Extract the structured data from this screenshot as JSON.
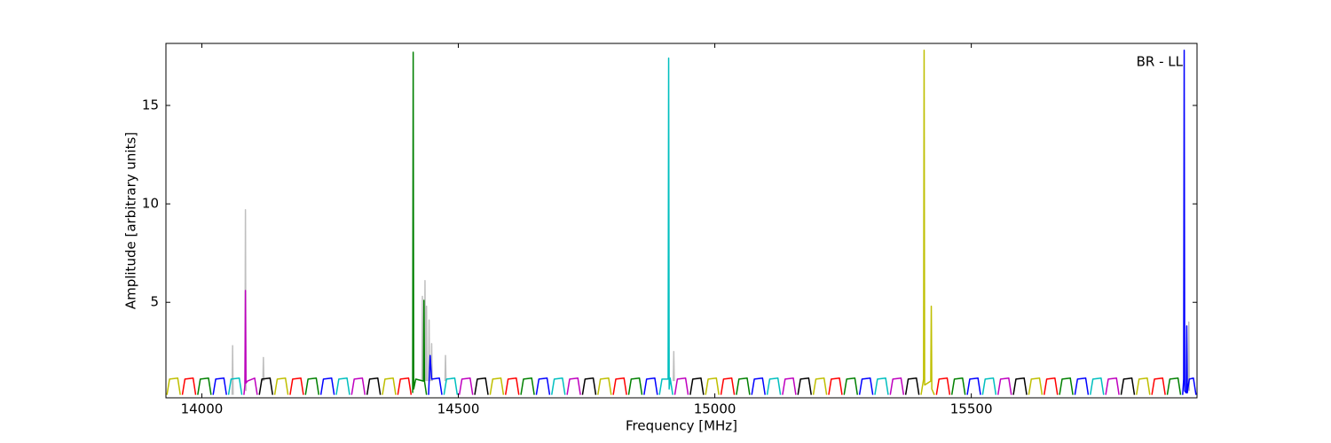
{
  "chart_data": {
    "type": "line",
    "xlabel": "Frequency [MHz]",
    "ylabel": "Amplitude [arbitrary units]",
    "annotation": "BR - LL",
    "xlim": [
      13930,
      15940
    ],
    "xticks": [
      14000,
      14500,
      15000,
      15500
    ],
    "ylim": [
      0.15,
      18.15
    ],
    "yticks": [
      5,
      10,
      15
    ],
    "series": [
      {
        "color": "#bfbfbf",
        "x": [
          14059,
          14060,
          14061,
          null,
          14084,
          14085,
          14086,
          null,
          14119,
          14120,
          14121,
          null,
          14429,
          14430,
          14431,
          null,
          14434,
          14435,
          14436,
          null,
          14437,
          14438,
          14439,
          null,
          14442,
          14443,
          14444,
          null,
          14447,
          14448,
          14449,
          null,
          14474,
          14475,
          14476,
          null,
          14919,
          14920,
          14921,
          null,
          15923,
          15924,
          15925
        ],
        "values": [
          0.3,
          2.8,
          0.3,
          null,
          0.5,
          9.7,
          0.5,
          null,
          1.0,
          2.2,
          1.0,
          null,
          1.0,
          5.3,
          1.0,
          null,
          1.0,
          6.1,
          1.0,
          null,
          1.0,
          4.8,
          1.0,
          null,
          1.0,
          4.1,
          1.0,
          null,
          1.0,
          2.9,
          1.0,
          null,
          1.0,
          2.3,
          1.0,
          null,
          1.0,
          2.5,
          1.0,
          null,
          0.5,
          4.0,
          0.5
        ]
      },
      {
        "color": "#bfbf00",
        "x": [
          13932,
          13937,
          13953,
          13958,
          null,
          14142,
          14147,
          14163,
          14168,
          null,
          14352,
          14357,
          14373,
          14378,
          null,
          14562,
          14567,
          14583,
          14588,
          null,
          14772,
          14777,
          14793,
          14798,
          null,
          14982,
          14987,
          15003,
          15008,
          null,
          15192,
          15197,
          15213,
          15218,
          null,
          15402,
          15407,
          15408,
          15409,
          15421,
          15422,
          15423,
          15428,
          null,
          15612,
          15617,
          15633,
          15638,
          null,
          15822,
          15827,
          15843,
          15848
        ],
        "values": [
          0.3,
          1.1,
          1.15,
          0.3,
          null,
          0.3,
          1.1,
          1.15,
          0.3,
          null,
          0.3,
          1.1,
          1.15,
          0.3,
          null,
          0.3,
          1.1,
          1.15,
          0.3,
          null,
          0.3,
          1.1,
          1.15,
          0.3,
          null,
          0.3,
          1.1,
          1.15,
          0.3,
          null,
          0.3,
          1.1,
          1.15,
          0.3,
          null,
          0.3,
          1.1,
          17.8,
          0.8,
          1.0,
          4.8,
          0.6,
          0.3,
          null,
          0.3,
          1.1,
          1.15,
          0.3,
          null,
          0.3,
          1.1,
          1.15,
          0.3
        ]
      },
      {
        "color": "#ff0000",
        "x": [
          13962,
          13967,
          13983,
          13988,
          null,
          14172,
          14177,
          14193,
          14198,
          null,
          14382,
          14387,
          14403,
          14408,
          null,
          14592,
          14597,
          14613,
          14618,
          null,
          14802,
          14807,
          14823,
          14828,
          null,
          15012,
          15017,
          15033,
          15038,
          null,
          15222,
          15227,
          15243,
          15248,
          null,
          15432,
          15437,
          15453,
          15458,
          null,
          15642,
          15647,
          15663,
          15668,
          null,
          15852,
          15857,
          15873,
          15878
        ],
        "values": [
          0.3,
          1.1,
          1.15,
          0.3,
          null,
          0.3,
          1.1,
          1.15,
          0.3,
          null,
          0.3,
          1.1,
          1.15,
          0.3,
          null,
          0.3,
          1.1,
          1.15,
          0.3,
          null,
          0.3,
          1.1,
          1.15,
          0.3,
          null,
          0.3,
          1.1,
          1.15,
          0.3,
          null,
          0.3,
          1.1,
          1.15,
          0.3,
          null,
          0.3,
          1.1,
          1.15,
          0.3,
          null,
          0.3,
          1.1,
          1.15,
          0.3,
          null,
          0.3,
          1.1,
          1.15,
          0.3
        ]
      },
      {
        "color": "#008000",
        "x": [
          13992,
          13997,
          14013,
          14018,
          null,
          14202,
          14207,
          14223,
          14228,
          null,
          14411,
          14412,
          14413,
          14417,
          14432,
          14433,
          14434,
          14438,
          null,
          14622,
          14627,
          14643,
          14648,
          null,
          14832,
          14837,
          14853,
          14858,
          null,
          15042,
          15047,
          15063,
          15068,
          null,
          15252,
          15257,
          15273,
          15278,
          null,
          15462,
          15467,
          15483,
          15488,
          null,
          15672,
          15677,
          15693,
          15698,
          null,
          15882,
          15887,
          15903,
          15908
        ],
        "values": [
          0.3,
          1.1,
          1.15,
          0.3,
          null,
          0.3,
          1.1,
          1.15,
          0.3,
          null,
          0.4,
          17.7,
          0.6,
          1.1,
          1.0,
          5.1,
          1.0,
          0.3,
          null,
          0.3,
          1.1,
          1.15,
          0.3,
          null,
          0.3,
          1.1,
          1.15,
          0.3,
          null,
          0.3,
          1.1,
          1.15,
          0.3,
          null,
          0.3,
          1.1,
          1.15,
          0.3,
          null,
          0.3,
          1.1,
          1.15,
          0.3,
          null,
          0.3,
          1.1,
          1.15,
          0.3,
          null,
          0.3,
          1.1,
          1.15,
          0.3
        ]
      },
      {
        "color": "#0000ff",
        "x": [
          14022,
          14027,
          14043,
          14048,
          null,
          14232,
          14237,
          14253,
          14258,
          null,
          14442,
          14445,
          14448,
          14463,
          14468,
          null,
          14652,
          14657,
          14673,
          14678,
          null,
          14862,
          14867,
          14883,
          14888,
          null,
          15072,
          15077,
          15093,
          15098,
          null,
          15282,
          15287,
          15303,
          15308,
          null,
          15492,
          15497,
          15513,
          15518,
          null,
          15702,
          15707,
          15723,
          15728,
          null,
          15912,
          15914,
          15915,
          15916,
          15919,
          15920,
          15921,
          15925,
          15933,
          15938
        ],
        "values": [
          0.3,
          1.1,
          1.15,
          0.3,
          null,
          0.3,
          1.1,
          1.15,
          0.3,
          null,
          0.3,
          2.3,
          1.1,
          1.15,
          0.3,
          null,
          0.3,
          1.1,
          1.15,
          0.3,
          null,
          0.3,
          1.1,
          1.15,
          0.3,
          null,
          0.3,
          1.1,
          1.15,
          0.3,
          null,
          0.3,
          1.1,
          1.15,
          0.3,
          null,
          0.3,
          1.1,
          1.15,
          0.3,
          null,
          0.3,
          1.1,
          1.15,
          0.3,
          null,
          0.3,
          1.1,
          17.8,
          0.5,
          0.4,
          3.8,
          0.4,
          1.1,
          1.15,
          0.3
        ]
      },
      {
        "color": "#00bfbf",
        "x": [
          14052,
          14057,
          14073,
          14078,
          null,
          14262,
          14267,
          14283,
          14288,
          null,
          14472,
          14477,
          14493,
          14498,
          null,
          14682,
          14687,
          14703,
          14708,
          null,
          14892,
          14897,
          14909,
          14910,
          14911,
          14913,
          14918,
          null,
          15102,
          15107,
          15123,
          15128,
          null,
          15312,
          15317,
          15333,
          15338,
          null,
          15522,
          15527,
          15543,
          15548,
          null,
          15732,
          15737,
          15753,
          15758
        ],
        "values": [
          0.3,
          1.1,
          1.15,
          0.3,
          null,
          0.3,
          1.1,
          1.15,
          0.3,
          null,
          0.3,
          1.1,
          1.15,
          0.3,
          null,
          0.3,
          1.1,
          1.15,
          0.3,
          null,
          0.3,
          1.1,
          1.1,
          17.4,
          0.6,
          1.15,
          0.3,
          null,
          0.3,
          1.1,
          1.15,
          0.3,
          null,
          0.3,
          1.1,
          1.15,
          0.3,
          null,
          0.3,
          1.1,
          1.15,
          0.3,
          null,
          0.3,
          1.1,
          1.15,
          0.3
        ]
      },
      {
        "color": "#bf00bf",
        "x": [
          14082,
          14084,
          14085,
          14086,
          14089,
          14103,
          14108,
          null,
          14292,
          14297,
          14313,
          14318,
          null,
          14502,
          14507,
          14523,
          14528,
          null,
          14712,
          14717,
          14733,
          14738,
          null,
          14922,
          14927,
          14943,
          14948,
          null,
          15132,
          15137,
          15153,
          15158,
          null,
          15342,
          15347,
          15363,
          15368,
          null,
          15552,
          15557,
          15573,
          15578,
          null,
          15762,
          15767,
          15783,
          15788
        ],
        "values": [
          0.3,
          0.8,
          5.6,
          0.9,
          1.0,
          1.15,
          0.3,
          null,
          0.3,
          1.1,
          1.15,
          0.3,
          null,
          0.3,
          1.1,
          1.15,
          0.3,
          null,
          0.3,
          1.1,
          1.15,
          0.3,
          null,
          0.3,
          1.1,
          1.15,
          0.3,
          null,
          0.3,
          1.1,
          1.15,
          0.3,
          null,
          0.3,
          1.1,
          1.15,
          0.3,
          null,
          0.3,
          1.1,
          1.15,
          0.3,
          null,
          0.3,
          1.1,
          1.15,
          0.3
        ]
      },
      {
        "color": "#000000",
        "x": [
          14112,
          14117,
          14133,
          14138,
          null,
          14322,
          14327,
          14343,
          14348,
          null,
          14532,
          14537,
          14553,
          14558,
          null,
          14742,
          14747,
          14763,
          14768,
          null,
          14952,
          14957,
          14973,
          14978,
          null,
          15162,
          15167,
          15183,
          15188,
          null,
          15372,
          15377,
          15393,
          15398,
          null,
          15582,
          15587,
          15603,
          15608,
          null,
          15792,
          15797,
          15813,
          15818
        ],
        "values": [
          0.3,
          1.1,
          1.15,
          0.3,
          null,
          0.3,
          1.1,
          1.15,
          0.3,
          null,
          0.3,
          1.1,
          1.15,
          0.3,
          null,
          0.3,
          1.1,
          1.15,
          0.3,
          null,
          0.3,
          1.1,
          1.15,
          0.3,
          null,
          0.3,
          1.1,
          1.15,
          0.3,
          null,
          0.3,
          1.1,
          1.15,
          0.3,
          null,
          0.3,
          1.1,
          1.15,
          0.3,
          null,
          0.3,
          1.1,
          1.15,
          0.3
        ]
      }
    ]
  }
}
